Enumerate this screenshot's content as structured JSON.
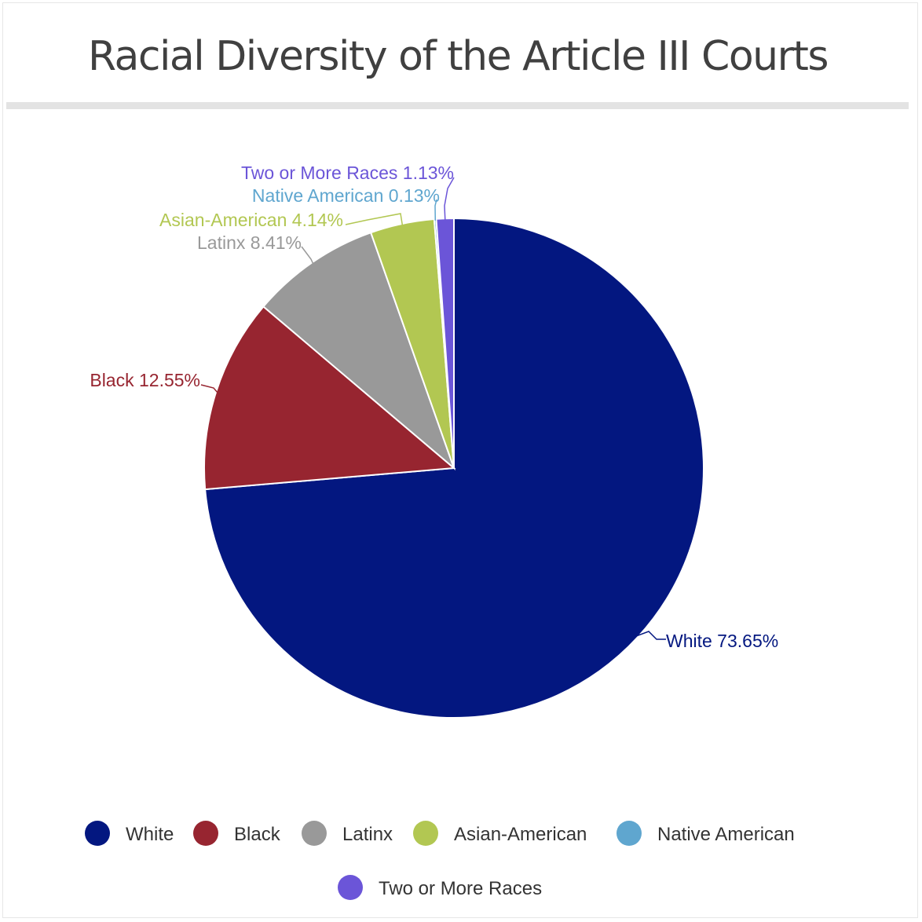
{
  "chart_data": {
    "type": "pie",
    "title": "Racial Diversity of the Article III Courts",
    "start_angle_deg": 0,
    "direction": "clockwise",
    "legend_position": "bottom",
    "slices": [
      {
        "label": "White",
        "value": 73.65,
        "display": "White 73.65%",
        "color": "#031780"
      },
      {
        "label": "Black",
        "value": 12.55,
        "display": "Black 12.55%",
        "color": "#972530"
      },
      {
        "label": "Latinx",
        "value": 8.41,
        "display": "Latinx 8.41%",
        "color": "#999999"
      },
      {
        "label": "Asian-American",
        "value": 4.14,
        "display": "Asian-American 4.14%",
        "color": "#b2c752"
      },
      {
        "label": "Native American",
        "value": 0.13,
        "display": "Native American 0.13%",
        "color": "#5fa6cf"
      },
      {
        "label": "Two or More Races",
        "value": 1.13,
        "display": "Two or More Races 1.13%",
        "color": "#6b55d8"
      }
    ]
  }
}
